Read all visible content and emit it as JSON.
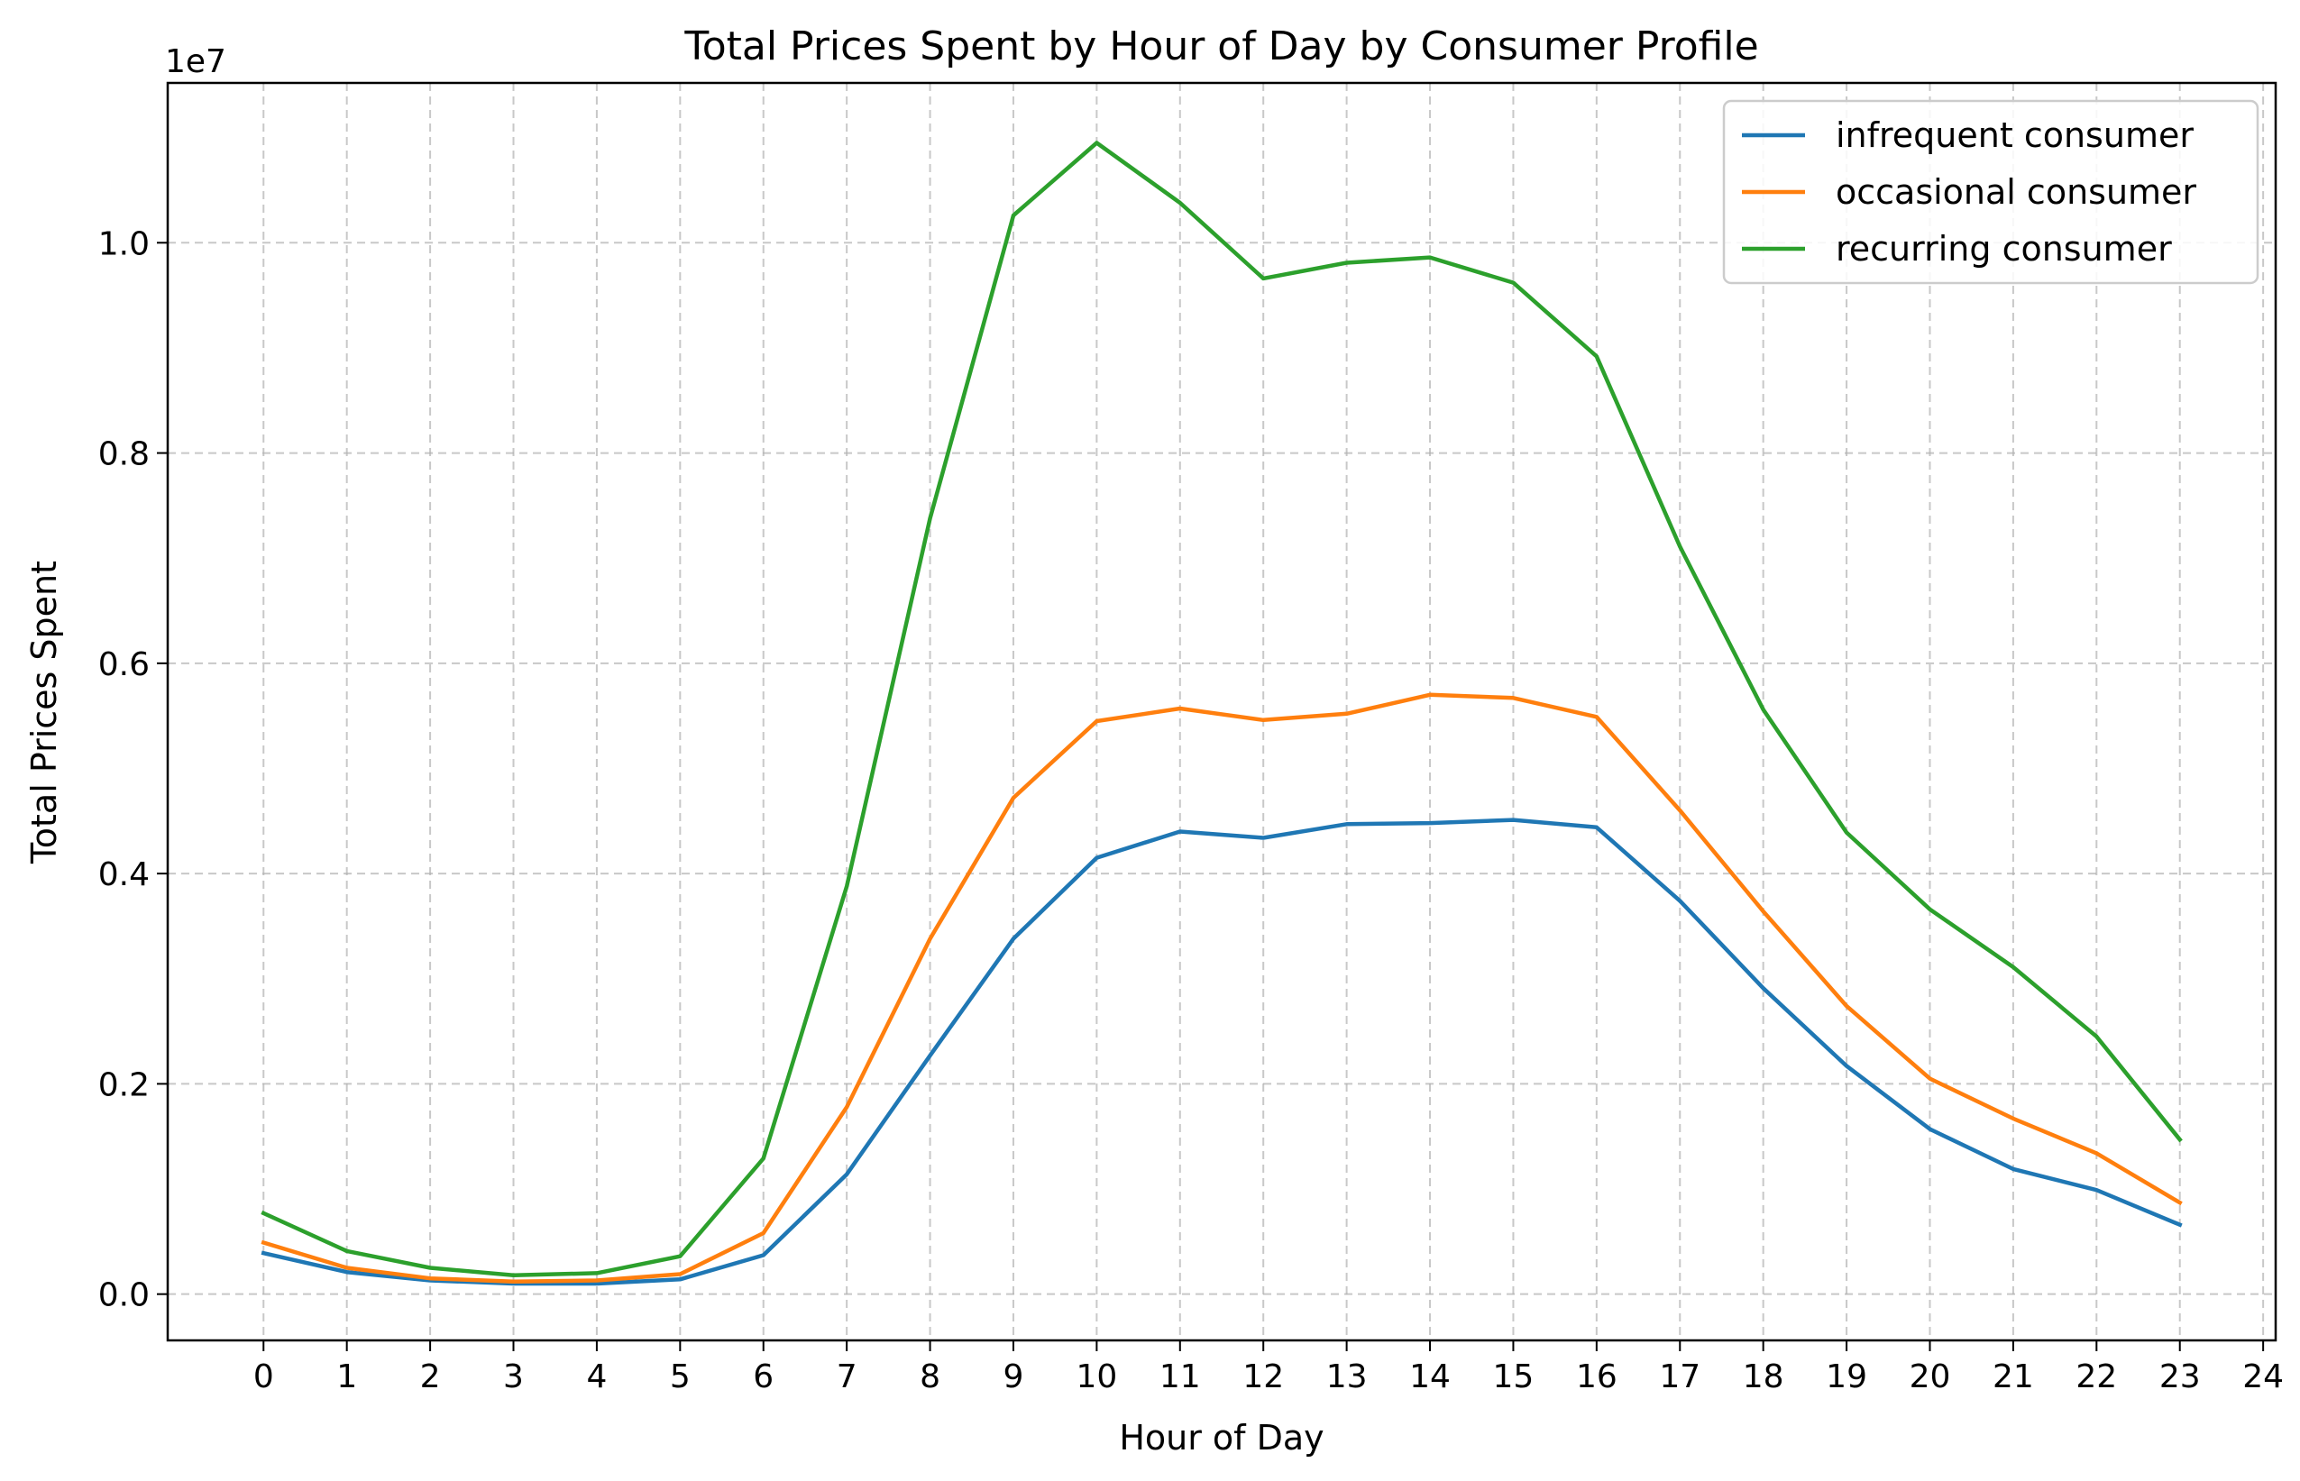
{
  "chart_data": {
    "type": "line",
    "title": "Total Prices Spent by Hour of Day by Consumer Profile",
    "xlabel": "Hour of Day",
    "ylabel": "Total Prices Spent",
    "y_offset_label": "1e7",
    "x_ticks": [
      "0",
      "1",
      "2",
      "3",
      "4",
      "5",
      "6",
      "7",
      "8",
      "9",
      "10",
      "11",
      "12",
      "13",
      "14",
      "15",
      "16",
      "17",
      "18",
      "19",
      "20",
      "21",
      "22",
      "23",
      "24"
    ],
    "y_ticks": [
      "0.0",
      "0.2",
      "0.4",
      "0.6",
      "0.8",
      "1.0"
    ],
    "y_tick_values": [
      0,
      2000000,
      4000000,
      6000000,
      8000000,
      10000000
    ],
    "xlim": [
      -1.15,
      24.15
    ],
    "ylim": [
      -440000,
      11520000
    ],
    "grid": true,
    "legend_position": "top-right",
    "x": [
      0,
      1,
      2,
      3,
      4,
      5,
      6,
      7,
      8,
      9,
      10,
      11,
      12,
      13,
      14,
      15,
      16,
      17,
      18,
      19,
      20,
      21,
      22,
      23
    ],
    "series": [
      {
        "name": "infrequent consumer",
        "color": "#1f77b4",
        "values": [
          390000,
          210000,
          130000,
          100000,
          100000,
          140000,
          370000,
          1140000,
          2270000,
          3380000,
          4150000,
          4400000,
          4340000,
          4470000,
          4480000,
          4510000,
          4440000,
          3740000,
          2910000,
          2170000,
          1570000,
          1190000,
          990000,
          660000
        ]
      },
      {
        "name": "occasional consumer",
        "color": "#ff7f0e",
        "values": [
          490000,
          250000,
          150000,
          120000,
          130000,
          190000,
          580000,
          1780000,
          3380000,
          4720000,
          5450000,
          5570000,
          5460000,
          5520000,
          5700000,
          5670000,
          5490000,
          4600000,
          3640000,
          2740000,
          2050000,
          1670000,
          1340000,
          870000
        ]
      },
      {
        "name": "recurring consumer",
        "color": "#2ca02c",
        "values": [
          770000,
          410000,
          250000,
          180000,
          200000,
          360000,
          1290000,
          3880000,
          7380000,
          10260000,
          10950000,
          10380000,
          9660000,
          9810000,
          9860000,
          9620000,
          8920000,
          7110000,
          5560000,
          4390000,
          3660000,
          3110000,
          2450000,
          1470000
        ]
      }
    ]
  }
}
